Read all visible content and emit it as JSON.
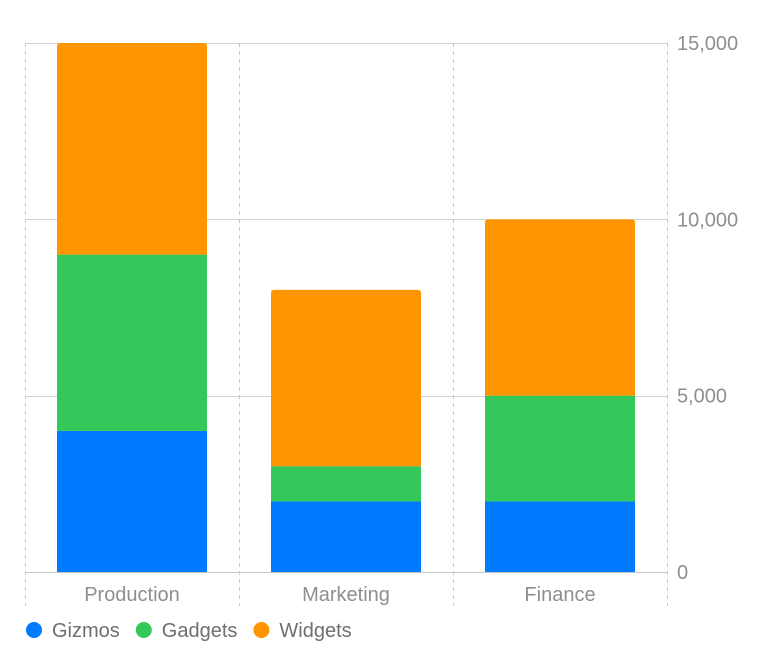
{
  "chart_data": {
    "type": "bar",
    "stacked": true,
    "categories": [
      "Production",
      "Marketing",
      "Finance"
    ],
    "series": [
      {
        "name": "Gizmos",
        "values": [
          4000,
          2000,
          2000
        ],
        "color": "#007aff"
      },
      {
        "name": "Gadgets",
        "values": [
          5000,
          1000,
          3000
        ],
        "color": "#34c759"
      },
      {
        "name": "Widgets",
        "values": [
          6000,
          5000,
          5000
        ],
        "color": "#ff9500"
      }
    ],
    "ylim": [
      0,
      15000
    ],
    "yticks": [
      0,
      5000,
      10000,
      15000
    ],
    "ytick_labels": [
      "0",
      "5,000",
      "10,000",
      "15,000"
    ],
    "y_axis_side": "right",
    "grid": true,
    "legend": "bottom-left",
    "title": "",
    "xlabel": "",
    "ylabel": ""
  }
}
